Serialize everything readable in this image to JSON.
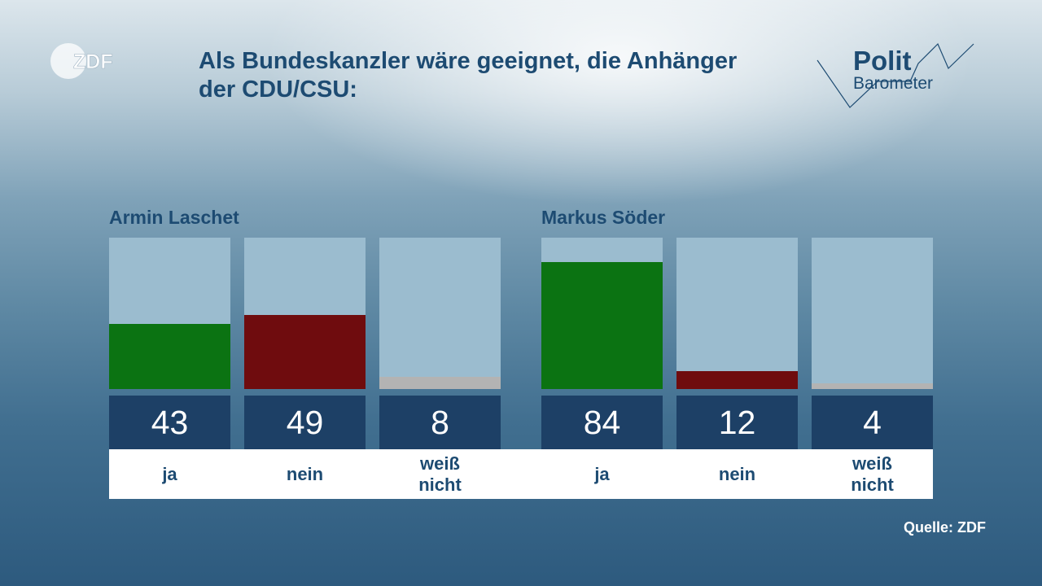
{
  "logo": {
    "brand": "ZDF"
  },
  "header": {
    "title_line1": "Als Bundeskanzler wäre geeignet, die Anhänger",
    "title_line2": "der CDU/CSU:"
  },
  "polit_logo": {
    "word1": "Polit",
    "word2": "Barometer"
  },
  "colors": {
    "ja": "#0b7312",
    "nein": "#6f0c0e",
    "weiss_nicht": "#b3b3b3",
    "bar_background": "#9bbccf",
    "value_box": "#1d4066"
  },
  "chart_data": [
    {
      "type": "bar",
      "title": "Armin Laschet",
      "categories": [
        "ja",
        "nein",
        "weiß nicht"
      ],
      "values": [
        43,
        49,
        8
      ],
      "ylim": [
        0,
        100
      ]
    },
    {
      "type": "bar",
      "title": "Markus Söder",
      "categories": [
        "ja",
        "nein",
        "weiß nicht"
      ],
      "values": [
        84,
        12,
        4
      ],
      "ylim": [
        0,
        100
      ]
    }
  ],
  "labels": {
    "ja": "ja",
    "nein": "nein",
    "weiss": "weiß",
    "nicht": "nicht"
  },
  "source": "Quelle: ZDF"
}
